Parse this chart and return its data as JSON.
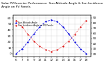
{
  "title": "Solar PV/Inverter Performance  Sun Altitude Angle & Sun Incidence Angle on PV Panels",
  "blue_label": "Sun Altitude Angle",
  "red_label": "Sun Incidence Angle on PV Panels",
  "time_hours": [
    6,
    7,
    8,
    9,
    10,
    11,
    12,
    13,
    14,
    15,
    16,
    17,
    18
  ],
  "altitude_angle": [
    0,
    8,
    20,
    33,
    45,
    54,
    57,
    54,
    45,
    33,
    20,
    8,
    0
  ],
  "incidence_angle": [
    85,
    72,
    58,
    45,
    35,
    28,
    25,
    28,
    35,
    45,
    58,
    72,
    85
  ],
  "right_yticks": [
    20,
    30,
    40,
    50,
    60,
    70,
    80,
    90
  ],
  "left_yticks": [
    0,
    10,
    20,
    30,
    40,
    50,
    60
  ],
  "ylim_left": [
    -5,
    65
  ],
  "ylim_right": [
    15,
    95
  ],
  "xlim": [
    5.5,
    18.8
  ],
  "bg_color": "#ffffff",
  "grid_color": "#bbbbbb",
  "blue_color": "#0000dd",
  "red_color": "#dd0000",
  "title_fontsize": 3.2,
  "tick_fontsize": 3.0,
  "legend_fontsize": 2.2,
  "line_width": 0.6,
  "marker_size": 1.2
}
